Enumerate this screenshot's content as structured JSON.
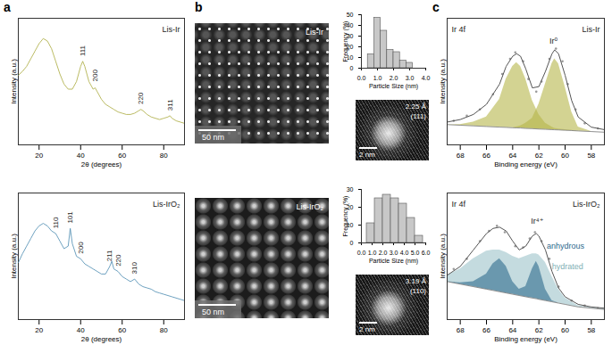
{
  "chart_data": [
    {
      "type": "line",
      "sample": "Lis-Ir",
      "x": [
        10,
        12,
        14,
        16,
        18,
        20,
        22,
        24,
        26,
        28,
        30,
        32,
        34,
        36,
        38,
        40,
        41,
        42,
        44,
        46,
        47,
        48,
        50,
        52,
        54,
        56,
        58,
        60,
        62,
        64,
        66,
        68,
        69,
        70,
        72,
        74,
        76,
        78,
        80,
        82,
        83,
        84,
        86,
        88,
        90
      ],
      "series": [
        {
          "color": "#a9a93c",
          "values": [
            55,
            58,
            62,
            68,
            74,
            80,
            84,
            82,
            76,
            66,
            56,
            48,
            44,
            44,
            50,
            62,
            66,
            62,
            50,
            44,
            45,
            42,
            36,
            32,
            30,
            28,
            26,
            25,
            24,
            24,
            25,
            27,
            28,
            27,
            24,
            22,
            21,
            20,
            21,
            22,
            23,
            21,
            19,
            18,
            17
          ]
        }
      ],
      "xlim": [
        10,
        90
      ],
      "xticks": [
        20,
        40,
        60,
        80
      ],
      "ylim": [
        0,
        100
      ],
      "xlabel": "2θ (degrees)",
      "ylabel": "Intensity (a.u.)",
      "tick_labels": "x",
      "annotations": [
        {
          "text": "111",
          "x": 41,
          "y": 70
        },
        {
          "text": "200",
          "x": 47,
          "y": 50
        },
        {
          "text": "220",
          "x": 69,
          "y": 32
        },
        {
          "text": "311",
          "x": 83,
          "y": 27
        }
      ]
    },
    {
      "type": "line",
      "sample": "Lis-IrO₂",
      "x": [
        10,
        12,
        14,
        16,
        18,
        20,
        22,
        24,
        26,
        28,
        30,
        32,
        34,
        35,
        36,
        38,
        40,
        42,
        44,
        46,
        48,
        50,
        52,
        54,
        55,
        56,
        58,
        60,
        62,
        64,
        66,
        68,
        70,
        72,
        74,
        76,
        78,
        80,
        84,
        88,
        90
      ],
      "series": [
        {
          "color": "#4a8ab0",
          "values": [
            45,
            52,
            58,
            64,
            70,
            74,
            76,
            74,
            70,
            68,
            62,
            56,
            58,
            72,
            60,
            50,
            48,
            44,
            42,
            40,
            38,
            36,
            36,
            42,
            46,
            40,
            38,
            34,
            32,
            30,
            32,
            28,
            26,
            25,
            24,
            22,
            21,
            20,
            18,
            16,
            15
          ]
        }
      ],
      "xlim": [
        10,
        90
      ],
      "xticks": [
        20,
        40,
        60,
        80
      ],
      "ylim": [
        0,
        100
      ],
      "xlabel": "2θ (degrees)",
      "ylabel": "Intensity (a.u.)",
      "tick_labels": "x",
      "annotations": [
        {
          "text": "110",
          "x": 28,
          "y": 72
        },
        {
          "text": "101",
          "x": 35,
          "y": 76
        },
        {
          "text": "200",
          "x": 40,
          "y": 52
        },
        {
          "text": "211",
          "x": 54,
          "y": 46
        },
        {
          "text": "220",
          "x": 58,
          "y": 42
        },
        {
          "text": "310",
          "x": 66,
          "y": 36
        }
      ]
    },
    {
      "type": "histogram",
      "bins": [
        0.4,
        0.8,
        1.2,
        1.6,
        2.0,
        2.4,
        2.8,
        3.2
      ],
      "values": [
        13,
        47,
        35,
        17,
        15,
        7,
        5
      ],
      "color": "#c8c8c8",
      "xlim": [
        0,
        4
      ],
      "xticks": [
        0,
        1,
        2,
        3,
        4
      ],
      "ylim": [
        0,
        50
      ],
      "yticks": [
        0,
        10,
        20,
        30,
        40,
        50
      ],
      "xlabel": "Particle Size (nm)",
      "ylabel": "Frequency (%)"
    },
    {
      "type": "histogram",
      "bins": [
        0.5,
        1.25,
        2,
        2.75,
        3.5,
        4.25,
        5,
        5.75
      ],
      "values": [
        11,
        25,
        27,
        25,
        22,
        14,
        4
      ],
      "color": "#c8c8c8",
      "xlim": [
        0,
        6
      ],
      "xticks": [
        0,
        1,
        2,
        3,
        4,
        5,
        6
      ],
      "ylim": [
        0,
        30
      ],
      "yticks": [
        0,
        10,
        20,
        30
      ],
      "xlabel": "Particle Size (nm)",
      "ylabel": "Frequency (%)"
    },
    {
      "type": "xps",
      "title": "Ir 4f",
      "sample": "Lis-Ir",
      "x": [
        69,
        68,
        67,
        66,
        65,
        64.5,
        64,
        63.7,
        63.4,
        63,
        62.5,
        62,
        61.5,
        61,
        60.8,
        60.5,
        60,
        59.5,
        59,
        58,
        57
      ],
      "baseline": [
        16,
        15.5,
        15,
        14.5,
        14,
        13.8,
        13.5,
        13.4,
        13.3,
        13,
        12.8,
        12.5,
        12.3,
        12,
        11.9,
        11.8,
        11.5,
        11.3,
        11,
        10.5,
        10
      ],
      "series": [
        {
          "type": "area",
          "color": "#b5b54a",
          "values": [
            16,
            16,
            18,
            22,
            36,
            52,
            62,
            65,
            62,
            52,
            35,
            24,
            17,
            14,
            13,
            12.5,
            12,
            11.5,
            11,
            10.5,
            10
          ]
        },
        {
          "type": "area",
          "color": "#b5b54a",
          "values": [
            16,
            15.5,
            15,
            14.5,
            14,
            13.8,
            13.5,
            14,
            15,
            17,
            21,
            32,
            48,
            64,
            68,
            64,
            46,
            26,
            14,
            10.5,
            10
          ]
        },
        {
          "type": "line",
          "color": "#555555",
          "values": [
            18,
            20,
            24,
            32,
            48,
            62,
            70,
            72,
            70,
            60,
            45,
            46,
            58,
            72,
            75,
            72,
            55,
            35,
            22,
            14,
            12
          ]
        }
      ],
      "scatter": {
        "color": "#9a9a9a",
        "x": [
          68.5,
          67.5,
          66.5,
          65.5,
          64.8,
          64.2,
          63.8,
          63.2,
          62.8,
          62.2,
          61.8,
          61.2,
          60.7,
          60.2,
          59.8,
          59.2,
          58.5,
          57.5
        ],
        "values": [
          19,
          23,
          28,
          40,
          56,
          68,
          73,
          66,
          52,
          42,
          50,
          68,
          76,
          66,
          48,
          28,
          17,
          13
        ]
      },
      "xlim": [
        69,
        57
      ],
      "xticks": [
        68,
        66,
        64,
        62,
        60,
        58
      ],
      "ylim": [
        0,
        100
      ],
      "xlabel": "Binding energy (eV)",
      "ylabel": "Intensity (a.u.)",
      "tick_labels": "x",
      "annotations": [
        {
          "text": "Ir⁰",
          "x": 61.2,
          "y": 82,
          "color": "#222222"
        }
      ]
    },
    {
      "type": "xps",
      "title": "Ir 4f",
      "sample": "Lis-IrO₂",
      "x": [
        69,
        68,
        67,
        66,
        65.5,
        65,
        64.5,
        64,
        63.5,
        63,
        62.5,
        62.2,
        62,
        61.5,
        61,
        60.5,
        60,
        59,
        58,
        57
      ],
      "baseline": [
        30,
        28,
        26,
        24,
        23,
        22,
        21,
        20,
        19,
        18,
        17,
        16.5,
        16,
        15,
        14,
        13,
        12,
        10,
        9,
        8
      ],
      "series": [
        {
          "type": "area",
          "color": "#9cc3c9",
          "values": [
            35,
            40,
            48,
            54,
            55,
            55,
            53,
            50,
            48,
            50,
            52,
            52,
            51,
            45,
            34,
            24,
            17,
            11,
            9.5,
            8.5
          ]
        },
        {
          "type": "area",
          "color": "#2e6a8e",
          "values": [
            30,
            29,
            30,
            36,
            44,
            48,
            42,
            30,
            24,
            26,
            40,
            46,
            42,
            24,
            15,
            13,
            12,
            10,
            9,
            8
          ]
        },
        {
          "type": "line",
          "color": "#555555",
          "values": [
            35,
            42,
            55,
            68,
            72,
            73,
            70,
            62,
            55,
            58,
            66,
            68,
            66,
            55,
            38,
            25,
            18,
            12,
            10,
            9
          ]
        }
      ],
      "scatter": {
        "color": "#9a9a9a",
        "x": [
          68.5,
          67.5,
          66.5,
          65.8,
          65.2,
          64.6,
          63.8,
          63.2,
          62.7,
          62.3,
          61.8,
          61.2,
          60.5,
          59.5,
          58.5,
          57.5
        ],
        "values": [
          40,
          48,
          62,
          70,
          74,
          69,
          58,
          57,
          64,
          69,
          62,
          48,
          26,
          15,
          11,
          9
        ]
      },
      "xlim": [
        69,
        57
      ],
      "xticks": [
        68,
        66,
        64,
        62,
        60,
        58
      ],
      "ylim": [
        0,
        100
      ],
      "xlabel": "Binding energy (eV)",
      "ylabel": "Intensity (a.u.)",
      "tick_labels": "x",
      "annotations": [
        {
          "text": "Ir⁴⁺",
          "x": 62.6,
          "y": 78,
          "color": "#222222"
        },
        {
          "text": "anhydrous",
          "x": 61.4,
          "y": 58,
          "color": "#2e6a8e"
        },
        {
          "text": "hydrated",
          "x": 61.0,
          "y": 42,
          "color": "#7fb0b5"
        }
      ]
    }
  ],
  "panel_letters": [
    "a",
    "b",
    "c"
  ],
  "micrographs": [
    {
      "sample": "Lis-Ir",
      "scale_bar": "50 nm"
    },
    {
      "sample": "Lis-IrO₂",
      "scale_bar": "50 nm"
    }
  ],
  "hr_images": [
    {
      "spacing": "2.25 Å",
      "plane": "(111)",
      "scale_bar": "2 nm"
    },
    {
      "spacing": "3.19 Å",
      "plane": "(110)",
      "scale_bar": "2 nm"
    }
  ]
}
